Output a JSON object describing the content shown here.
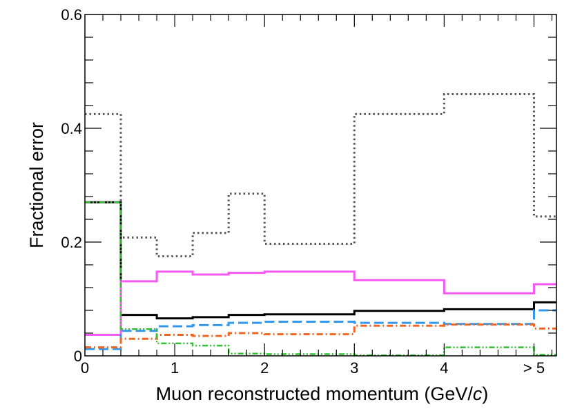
{
  "chart_data": {
    "type": "line",
    "xlabel": "Muon reconstructed momentum (GeV/",
    "xlabel_italic": "c",
    "xlabel_close": ")",
    "ylabel": "Fractional error",
    "xlim": [
      0,
      5.25
    ],
    "ylim": [
      0,
      0.6
    ],
    "grid": false,
    "x_ticks": [
      {
        "value": 0,
        "label": "0"
      },
      {
        "value": 1,
        "label": "1"
      },
      {
        "value": 2,
        "label": "2"
      },
      {
        "value": 3,
        "label": "3"
      },
      {
        "value": 4,
        "label": "4"
      },
      {
        "value": 5,
        "label": "> 5"
      }
    ],
    "y_ticks": [
      {
        "value": 0,
        "label": "0"
      },
      {
        "value": 0.2,
        "label": "0.2"
      },
      {
        "value": 0.4,
        "label": "0.4"
      },
      {
        "value": 0.6,
        "label": "0.6"
      }
    ],
    "bin_edges": [
      0,
      0.4,
      0.8,
      1.2,
      1.6,
      2.0,
      3.0,
      4.0,
      5.0,
      5.25
    ],
    "series": [
      {
        "style": "dotted",
        "color": "#555555",
        "values": [
          0.425,
          0.208,
          0.175,
          0.216,
          0.285,
          0.197,
          0.425,
          0.46,
          0.245
        ]
      },
      {
        "style": "solid",
        "color": "#000000",
        "values": [
          0.27,
          0.072,
          0.066,
          0.068,
          0.072,
          0.073,
          0.079,
          0.082,
          0.094
        ]
      },
      {
        "style": "solid",
        "color": "#f25af2",
        "values": [
          0.037,
          0.131,
          0.148,
          0.143,
          0.146,
          0.148,
          0.133,
          0.11,
          0.126
        ]
      },
      {
        "style": "dashed",
        "color": "#3399ee",
        "values": [
          0.012,
          0.044,
          0.052,
          0.054,
          0.058,
          0.06,
          0.058,
          0.056,
          0.08
        ]
      },
      {
        "style": "dashdot",
        "color": "#ee6622",
        "values": [
          0.015,
          0.03,
          0.037,
          0.035,
          0.04,
          0.038,
          0.053,
          0.055,
          0.048
        ]
      },
      {
        "style": "dashdotdot",
        "color": "#33bb33",
        "values": [
          0.27,
          0.047,
          0.022,
          0.018,
          0.004,
          0.003,
          0.001,
          0.015,
          0.002
        ]
      }
    ]
  }
}
